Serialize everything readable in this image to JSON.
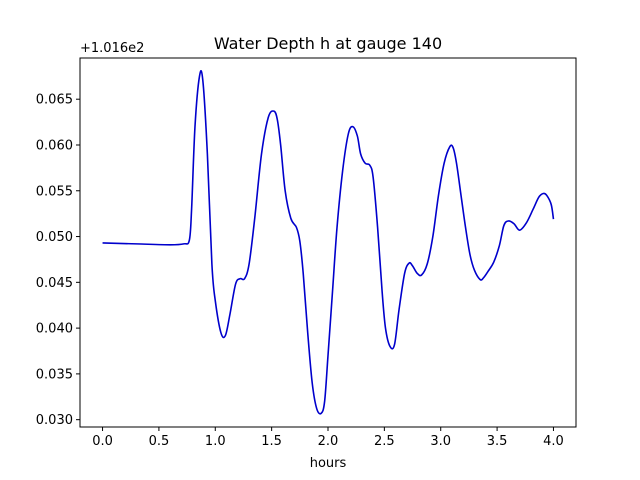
{
  "chart_data": {
    "type": "line",
    "title": "Water Depth h at gauge 140",
    "xlabel": "hours",
    "ylabel": "",
    "y_offset_label": "+1.016e2",
    "xlim": [
      -0.2,
      4.2
    ],
    "ylim": [
      0.0292,
      0.0695
    ],
    "xticks": [
      0.0,
      0.5,
      1.0,
      1.5,
      2.0,
      2.5,
      3.0,
      3.5,
      4.0
    ],
    "xtick_labels": [
      "0.0",
      "0.5",
      "1.0",
      "1.5",
      "2.0",
      "2.5",
      "3.0",
      "3.5",
      "4.0"
    ],
    "yticks": [
      0.03,
      0.035,
      0.04,
      0.045,
      0.05,
      0.055,
      0.06,
      0.065
    ],
    "ytick_labels": [
      "0.030",
      "0.035",
      "0.040",
      "0.045",
      "0.050",
      "0.055",
      "0.060",
      "0.065"
    ],
    "grid": false,
    "series": [
      {
        "name": "",
        "color": "#0000cc",
        "x": [
          0.0,
          0.3,
          0.6,
          0.72,
          0.77,
          0.79,
          0.82,
          0.86,
          0.89,
          0.93,
          0.97,
          1.0,
          1.05,
          1.09,
          1.13,
          1.18,
          1.22,
          1.26,
          1.3,
          1.35,
          1.41,
          1.47,
          1.52,
          1.55,
          1.58,
          1.62,
          1.67,
          1.72,
          1.75,
          1.78,
          1.82,
          1.86,
          1.9,
          1.94,
          1.97,
          2.0,
          2.04,
          2.08,
          2.13,
          2.18,
          2.22,
          2.26,
          2.29,
          2.33,
          2.37,
          2.4,
          2.44,
          2.48,
          2.51,
          2.55,
          2.59,
          2.63,
          2.68,
          2.72,
          2.75,
          2.79,
          2.83,
          2.88,
          2.93,
          2.98,
          3.03,
          3.08,
          3.11,
          3.14,
          3.18,
          3.22,
          3.26,
          3.3,
          3.35,
          3.38,
          3.42,
          3.47,
          3.52,
          3.56,
          3.6,
          3.65,
          3.7,
          3.76,
          3.82,
          3.87,
          3.91,
          3.94,
          3.98,
          4.0
        ],
        "y": [
          0.0493,
          0.0492,
          0.0491,
          0.0492,
          0.0496,
          0.053,
          0.062,
          0.0675,
          0.067,
          0.059,
          0.047,
          0.043,
          0.0395,
          0.0392,
          0.0415,
          0.0448,
          0.0454,
          0.0454,
          0.047,
          0.052,
          0.059,
          0.063,
          0.0637,
          0.0628,
          0.06,
          0.055,
          0.052,
          0.051,
          0.0495,
          0.046,
          0.0395,
          0.034,
          0.0312,
          0.0307,
          0.032,
          0.037,
          0.044,
          0.051,
          0.0572,
          0.0612,
          0.062,
          0.061,
          0.059,
          0.058,
          0.0578,
          0.0565,
          0.051,
          0.044,
          0.04,
          0.038,
          0.0382,
          0.042,
          0.046,
          0.0471,
          0.0468,
          0.046,
          0.0458,
          0.047,
          0.05,
          0.0545,
          0.058,
          0.0598,
          0.0597,
          0.058,
          0.0545,
          0.051,
          0.048,
          0.0463,
          0.0453,
          0.0455,
          0.0462,
          0.0472,
          0.049,
          0.0512,
          0.0517,
          0.0514,
          0.0507,
          0.0515,
          0.053,
          0.0543,
          0.0547,
          0.0545,
          0.0535,
          0.0519
        ]
      }
    ]
  }
}
